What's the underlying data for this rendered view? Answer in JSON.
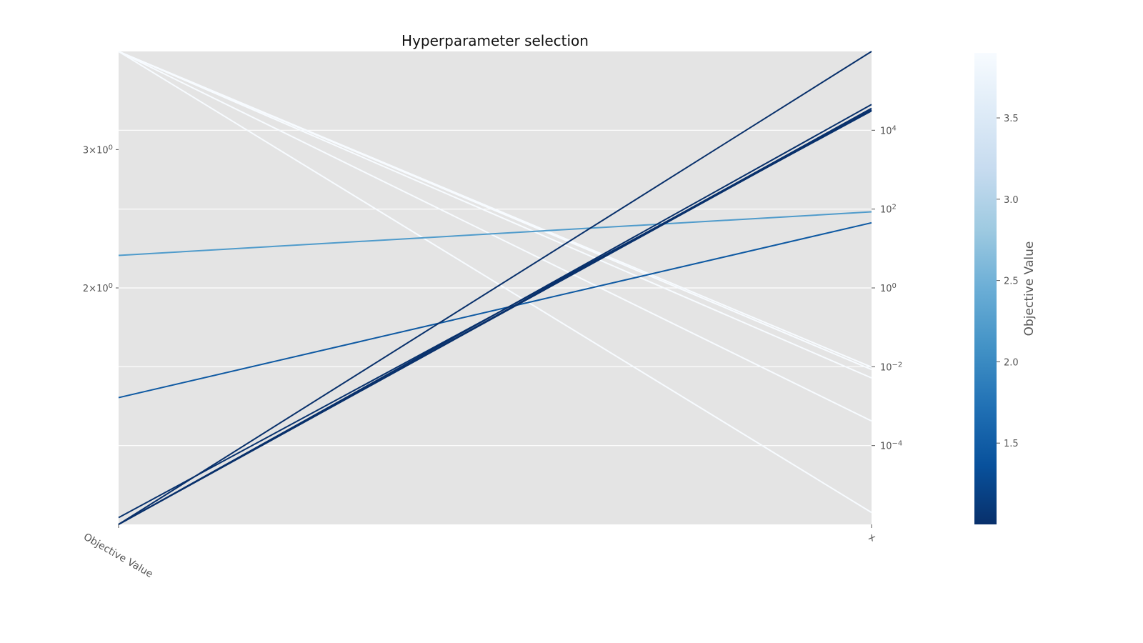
{
  "chart_data": {
    "type": "parallel-coordinates",
    "title": "Hyperparameter selection",
    "axes": [
      {
        "name": "Objective Value",
        "scale": "log",
        "range": [
          1.0,
          4.0
        ],
        "ticks": [
          {
            "value": 2,
            "base": "2",
            "exp": "0"
          },
          {
            "value": 3,
            "base": "3",
            "exp": "0"
          }
        ]
      },
      {
        "name": "x",
        "scale": "log",
        "range": [
          1e-06,
          1000000.0
        ],
        "ticks": [
          {
            "value": 0.0001,
            "base": "10",
            "exp": "−4"
          },
          {
            "value": 0.01,
            "base": "10",
            "exp": "−2"
          },
          {
            "value": 1,
            "base": "10",
            "exp": "0"
          },
          {
            "value": 100,
            "base": "10",
            "exp": "2"
          },
          {
            "value": 10000,
            "base": "10",
            "exp": "4"
          }
        ]
      }
    ],
    "trials": [
      {
        "objective": 1.0,
        "x": 1000000
      },
      {
        "objective": 1.0,
        "x": 45000
      },
      {
        "objective": 1.0,
        "x": 36000
      },
      {
        "objective": 1.0,
        "x": 33000
      },
      {
        "objective": 1.02,
        "x": 31000
      },
      {
        "objective": 1.45,
        "x": 45
      },
      {
        "objective": 2.2,
        "x": 85
      },
      {
        "objective": 4.0,
        "x": 0.0098
      },
      {
        "objective": 4.0,
        "x": 0.0085
      },
      {
        "objective": 4.0,
        "x": 0.0052
      },
      {
        "objective": 4.0,
        "x": 0.00042
      },
      {
        "objective": 4.0,
        "x": 2e-06
      }
    ],
    "colorbar": {
      "label": "Objective Value",
      "colormap": "Blues_r",
      "range": [
        1.0,
        3.9
      ],
      "ticks": [
        "1.5",
        "2.0",
        "2.5",
        "3.0",
        "3.5"
      ]
    },
    "plot_background": "#e4e4e4",
    "gridlines": "white horizontal"
  }
}
